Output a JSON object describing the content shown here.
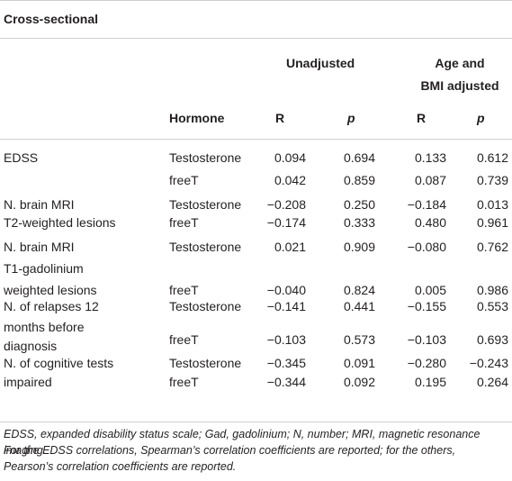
{
  "section_title": "Cross-sectional",
  "header": {
    "hormone": "Hormone",
    "unadjusted": "Unadjusted",
    "adjusted_line1": "Age and",
    "adjusted_line2": "BMI adjusted",
    "r1": "R",
    "p1": "p",
    "r2": "R",
    "p2": "p"
  },
  "groups": [
    {
      "label_lines": [
        "EDSS"
      ],
      "rows": [
        {
          "hormone": "Testosterone",
          "r1": "0.094",
          "p1": "0.694",
          "r2": "0.133",
          "p2": "0.612"
        },
        {
          "hormone": "freeT",
          "r1": "0.042",
          "p1": "0.859",
          "r2": "0.087",
          "p2": "0.739"
        }
      ]
    },
    {
      "label_lines": [
        "N. brain MRI",
        "T2-weighted lesions"
      ],
      "rows": [
        {
          "hormone": "Testosterone",
          "r1": "−0.208",
          "p1": "0.250",
          "r2": "−0.184",
          "p2": "0.013"
        },
        {
          "hormone": "freeT",
          "r1": "−0.174",
          "p1": "0.333",
          "r2": "0.480",
          "p2": "0.961"
        }
      ]
    },
    {
      "label_lines": [
        "N. brain MRI",
        "T1-gadolinium",
        "weighted lesions"
      ],
      "rows": [
        {
          "hormone": "Testosterone",
          "r1": "0.021",
          "p1": "0.909",
          "r2": "−0.080",
          "p2": "0.762"
        },
        {
          "hormone": "freeT",
          "r1": "−0.040",
          "p1": "0.824",
          "r2": "0.005",
          "p2": "0.986"
        }
      ]
    },
    {
      "label_lines": [
        "N. of relapses 12",
        "months before",
        "diagnosis"
      ],
      "rows": [
        {
          "hormone": "Testosterone",
          "r1": "−0.141",
          "p1": "0.441",
          "r2": "−0.155",
          "p2": "0.553"
        },
        {
          "hormone": "freeT",
          "r1": "−0.103",
          "p1": "0.573",
          "r2": "−0.103",
          "p2": "0.693"
        }
      ]
    },
    {
      "label_lines": [
        "N. of cognitive tests",
        "impaired"
      ],
      "rows": [
        {
          "hormone": "Testosterone",
          "r1": "−0.345",
          "p1": "0.091",
          "r2": "−0.280",
          "p2": "−0.243"
        },
        {
          "hormone": "freeT",
          "r1": "−0.344",
          "p1": "0.092",
          "r2": "0.195",
          "p2": "0.264"
        }
      ]
    }
  ],
  "footnotes": [
    "EDSS, expanded disability status scale; Gad, gadolinium; N, number; MRI, magnetic resonance imaging.",
    "For the EDSS correlations, Spearman’s correlation coefficients are reported; for the others, Pearson’s correlation coefficients are reported."
  ]
}
